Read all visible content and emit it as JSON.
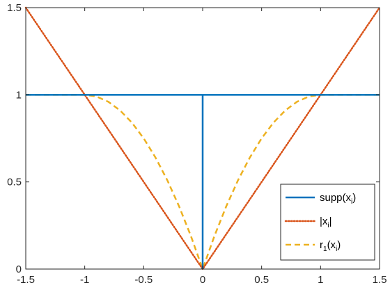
{
  "chart_data": {
    "type": "line",
    "title": "",
    "xlabel": "",
    "ylabel": "",
    "xlim": [
      -1.5,
      1.5
    ],
    "ylim": [
      0,
      1.5
    ],
    "xticks": [
      -1.5,
      -1,
      -0.5,
      0,
      0.5,
      1,
      1.5
    ],
    "yticks": [
      0,
      0.5,
      1,
      1.5
    ],
    "xtick_labels": [
      "-1.5",
      "-1",
      "-0.5",
      "0",
      "0.5",
      "1",
      "1.5"
    ],
    "ytick_labels": [
      "0",
      "0.5",
      "1",
      "1.5"
    ],
    "grid": false,
    "legend_position": "bottom-right",
    "series": [
      {
        "name": "supp(x_i)",
        "legend": {
          "main": "supp(x",
          "sub": "i",
          "tail": ")"
        },
        "color": "#0072bd",
        "style": "solid",
        "x": [
          -1.5,
          -0.0001,
          0,
          0.0001,
          1.5
        ],
        "y": [
          1,
          1,
          0,
          1,
          1
        ]
      },
      {
        "name": "|x_i|",
        "legend": {
          "main": "|x",
          "sub": "i",
          "tail": "|"
        },
        "color": "#d95319",
        "style": "dotted",
        "x": [
          -1.5,
          0,
          1.5
        ],
        "y": [
          1.5,
          0,
          1.5
        ]
      },
      {
        "name": "r_1(x_i)",
        "legend": {
          "main": "r",
          "sub": "1",
          "mid": "(x",
          "sub2": "i",
          "tail": ")"
        },
        "color": "#edb120",
        "style": "dashed",
        "x": [
          -1.5,
          -1.0,
          -0.9,
          -0.8,
          -0.7,
          -0.6,
          -0.5,
          -0.4,
          -0.3,
          -0.2,
          -0.1,
          0,
          0.1,
          0.2,
          0.3,
          0.4,
          0.5,
          0.6,
          0.7,
          0.8,
          0.9,
          1.0,
          1.5
        ],
        "y": [
          1,
          1,
          0.99,
          0.96,
          0.91,
          0.84,
          0.75,
          0.64,
          0.51,
          0.36,
          0.19,
          0,
          0.19,
          0.36,
          0.51,
          0.64,
          0.75,
          0.84,
          0.91,
          0.96,
          0.99,
          1,
          1
        ]
      }
    ]
  }
}
